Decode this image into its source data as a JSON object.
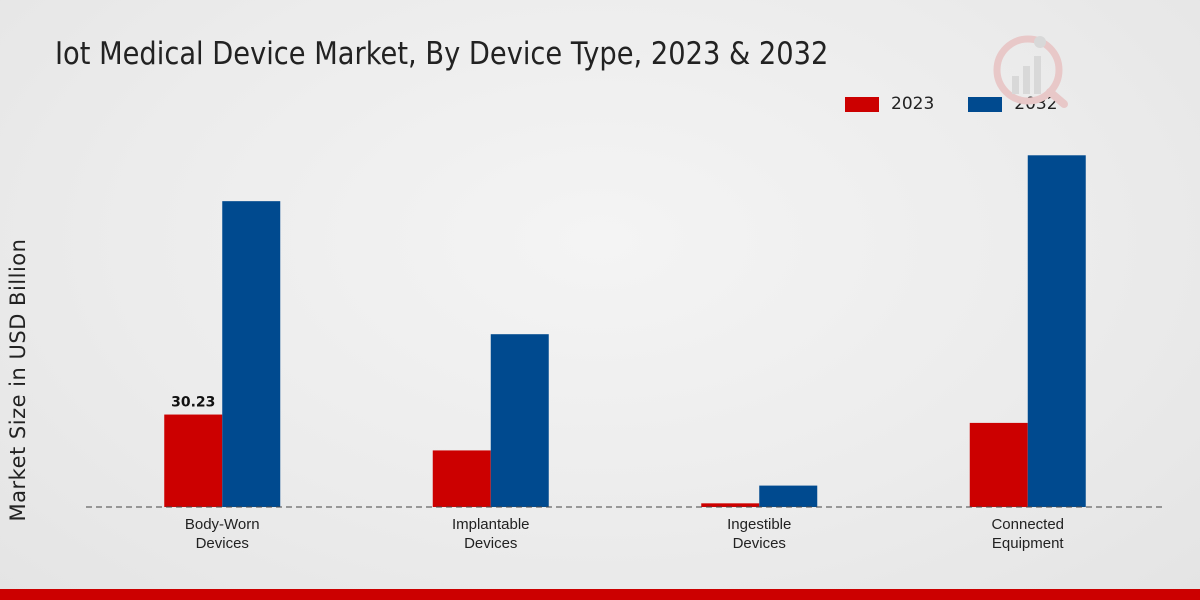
{
  "chart_data": {
    "type": "bar",
    "title": "Iot Medical Device Market, By Device Type, 2023 & 2032",
    "xlabel": "",
    "ylabel": "Market Size in USD Billion",
    "ylim": [
      0,
      120
    ],
    "categories": [
      "Body-Worn Devices",
      "Implantable Devices",
      "Ingestible Devices",
      "Connected Equipment"
    ],
    "category_lines": [
      [
        "Body-Worn",
        "Devices"
      ],
      [
        "Implantable",
        "Devices"
      ],
      [
        "Ingestible",
        "Devices"
      ],
      [
        "Connected",
        "Equipment"
      ]
    ],
    "series": [
      {
        "name": "2023",
        "color": "#cc0000",
        "values": [
          30.23,
          18.5,
          1.2,
          27.5
        ]
      },
      {
        "name": "2032",
        "color": "#004a8f",
        "values": [
          100.0,
          56.5,
          7.0,
          115.0
        ]
      }
    ],
    "data_labels": [
      {
        "series": 0,
        "index": 0,
        "text": "30.23"
      }
    ],
    "legend": "top-right",
    "grid": false
  }
}
